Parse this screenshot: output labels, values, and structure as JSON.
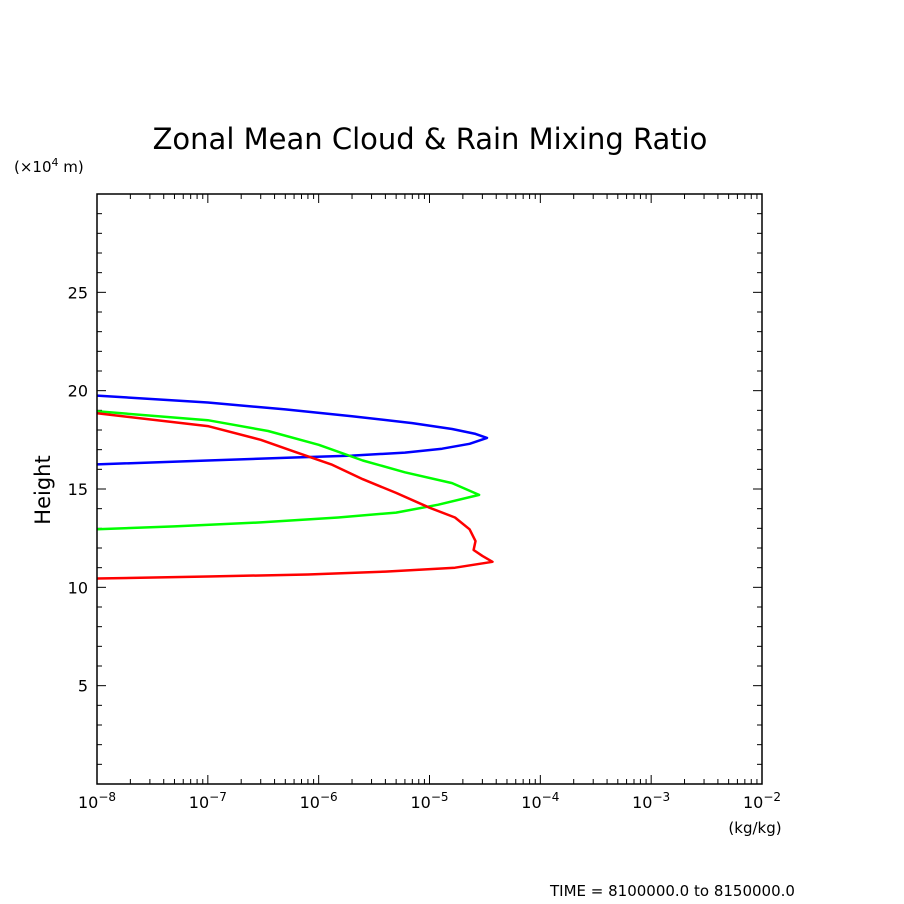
{
  "chart_data": {
    "type": "line",
    "title": "Zonal Mean Cloud & Rain Mixing Ratio",
    "ylabel": "Height",
    "y_unit_label": "(×10⁴ m)",
    "y_unit_prefix": "(×10",
    "y_unit_exp": "4",
    "y_unit_suffix": " m)",
    "xlabel": "(kg/kg)",
    "x_scale": "log",
    "xlim": [
      1e-08,
      0.01
    ],
    "ylim": [
      0,
      30
    ],
    "x_tick_values": [
      1e-08,
      1e-07,
      1e-06,
      1e-05,
      0.0001,
      0.001,
      0.01
    ],
    "x_tick_labels": [
      {
        "base": "10",
        "exp": "−8"
      },
      {
        "base": "10",
        "exp": "−7"
      },
      {
        "base": "10",
        "exp": "−6"
      },
      {
        "base": "10",
        "exp": "−5"
      },
      {
        "base": "10",
        "exp": "−4"
      },
      {
        "base": "10",
        "exp": "−3"
      },
      {
        "base": "10",
        "exp": "−2"
      }
    ],
    "y_ticks": [
      5,
      10,
      15,
      20,
      25
    ],
    "grid": false,
    "footer": "TIME = 8100000.0 to 8150000.0",
    "series": [
      {
        "color": "#0000ff",
        "points": [
          [
            1e-08,
            19.75
          ],
          [
            1e-07,
            19.4
          ],
          [
            5e-07,
            19.05
          ],
          [
            2e-06,
            18.7
          ],
          [
            7e-06,
            18.35
          ],
          [
            1.6e-05,
            18.05
          ],
          [
            2.6e-05,
            17.8
          ],
          [
            3.3e-05,
            17.6
          ],
          [
            2.3e-05,
            17.3
          ],
          [
            1.3e-05,
            17.05
          ],
          [
            6e-06,
            16.85
          ],
          [
            2e-06,
            16.7
          ],
          [
            6e-07,
            16.6
          ],
          [
            1e-07,
            16.45
          ],
          [
            1e-08,
            16.25
          ]
        ]
      },
      {
        "color": "#00ff00",
        "points": [
          [
            1e-08,
            18.95
          ],
          [
            1e-07,
            18.5
          ],
          [
            3.5e-07,
            17.95
          ],
          [
            1e-06,
            17.25
          ],
          [
            2.5e-06,
            16.45
          ],
          [
            6e-06,
            15.85
          ],
          [
            1.6e-05,
            15.3
          ],
          [
            2.8e-05,
            14.7
          ],
          [
            1.2e-05,
            14.2
          ],
          [
            5e-06,
            13.8
          ],
          [
            1.5e-06,
            13.55
          ],
          [
            3e-07,
            13.3
          ],
          [
            5e-08,
            13.1
          ],
          [
            1e-08,
            12.95
          ]
        ]
      },
      {
        "color": "#ff0000",
        "points": [
          [
            1e-08,
            18.85
          ],
          [
            1e-07,
            18.2
          ],
          [
            3e-07,
            17.5
          ],
          [
            6e-07,
            16.9
          ],
          [
            1.3e-06,
            16.25
          ],
          [
            2.5e-06,
            15.5
          ],
          [
            5e-06,
            14.8
          ],
          [
            1e-05,
            14.05
          ],
          [
            1.7e-05,
            13.55
          ],
          [
            2.3e-05,
            12.95
          ],
          [
            2.6e-05,
            12.35
          ],
          [
            2.5e-05,
            11.9
          ],
          [
            3e-05,
            11.6
          ],
          [
            3.7e-05,
            11.3
          ],
          [
            1.7e-05,
            11.0
          ],
          [
            4e-06,
            10.8
          ],
          [
            8e-07,
            10.65
          ],
          [
            1e-07,
            10.55
          ],
          [
            1e-08,
            10.45
          ]
        ]
      }
    ]
  }
}
